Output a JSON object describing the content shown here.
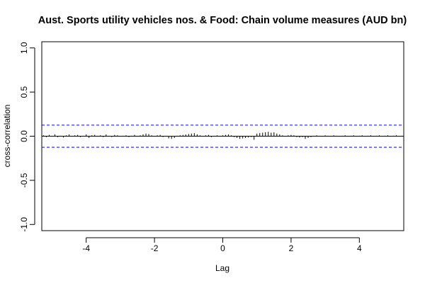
{
  "chart_data": {
    "type": "bar",
    "title": "Aust. Sports utility vehicles nos.  & Food: Chain volume measures (AUD bn)",
    "xlabel": "Lag",
    "ylabel": "cross-correlation",
    "xlim": [
      -5.3,
      5.3
    ],
    "ylim": [
      -1.07,
      1.07
    ],
    "x_ticks": [
      -4,
      -2,
      0,
      2,
      4
    ],
    "x_tick_labels": [
      "-4",
      "-2",
      "0",
      "2",
      "4"
    ],
    "y_ticks": [
      -1.0,
      -0.5,
      0.0,
      0.5,
      1.0
    ],
    "y_tick_labels": [
      "-1.0",
      "-0.5",
      "0.0",
      "0.5",
      "1.0"
    ],
    "confidence_bound": 0.125,
    "lag_step": 0.08333,
    "values": [
      0.01,
      -0.01,
      0.015,
      -0.005,
      0.02,
      -0.01,
      0.005,
      -0.015,
      0.01,
      0.02,
      -0.005,
      0.01,
      0.015,
      -0.01,
      0.005,
      0.02,
      -0.02,
      0.01,
      0.015,
      -0.005,
      0.01,
      -0.01,
      0.02,
      0.005,
      -0.01,
      0.015,
      0.01,
      -0.005,
      0.005,
      0.01,
      -0.01,
      0.005,
      0.015,
      -0.005,
      0.01,
      0.02,
      0.03,
      0.025,
      0.01,
      -0.005,
      0.01,
      0.015,
      -0.01,
      0.005,
      -0.025,
      -0.03,
      -0.02,
      0.005,
      0.01,
      0.015,
      0.02,
      0.025,
      0.03,
      0.035,
      0.02,
      0.01,
      -0.005,
      0.01,
      0.015,
      -0.01,
      0.005,
      0.01,
      -0.005,
      0.01,
      0.015,
      0.02,
      0.01,
      -0.01,
      -0.02,
      -0.03,
      -0.025,
      -0.02,
      -0.015,
      -0.01,
      -0.04,
      0.03,
      0.035,
      0.04,
      0.045,
      0.05,
      0.04,
      0.045,
      0.03,
      0.02,
      0.01,
      -0.005,
      0.01,
      0.015,
      0.01,
      -0.01,
      -0.015,
      -0.01,
      -0.03,
      -0.02,
      -0.01,
      0.005,
      0.01,
      0.005,
      -0.005,
      0.01,
      0.005,
      -0.005,
      0.01,
      0.005,
      -0.005,
      0.005,
      0.01,
      -0.005,
      0.005,
      0.01,
      -0.005,
      0.005,
      0.01,
      -0.005,
      0.005,
      0.01,
      -0.005,
      0.005,
      0.01,
      -0.005,
      0.005,
      0.01,
      -0.005,
      0.005,
      0.01,
      -0.005,
      0.005
    ],
    "colors": {
      "bars": "#000000",
      "confidence": "#0000ff",
      "zero_line": "#000000",
      "frame": "#000000"
    }
  }
}
